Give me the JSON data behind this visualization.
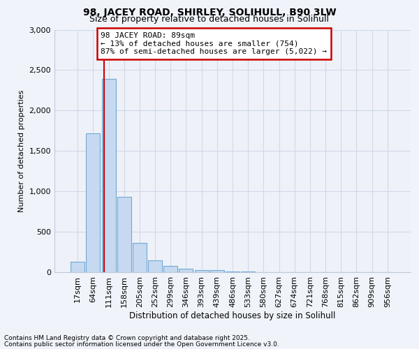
{
  "title1": "98, JACEY ROAD, SHIRLEY, SOLIHULL, B90 3LW",
  "title2": "Size of property relative to detached houses in Solihull",
  "xlabel": "Distribution of detached houses by size in Solihull",
  "ylabel": "Number of detached properties",
  "bar_labels": [
    "17sqm",
    "64sqm",
    "111sqm",
    "158sqm",
    "205sqm",
    "252sqm",
    "299sqm",
    "346sqm",
    "393sqm",
    "439sqm",
    "486sqm",
    "533sqm",
    "580sqm",
    "627sqm",
    "674sqm",
    "721sqm",
    "768sqm",
    "815sqm",
    "862sqm",
    "909sqm",
    "956sqm"
  ],
  "bar_values": [
    130,
    1720,
    2390,
    930,
    360,
    150,
    80,
    45,
    30,
    22,
    8,
    5,
    0,
    0,
    0,
    0,
    0,
    0,
    0,
    0,
    0
  ],
  "bar_color": "#c6d9f0",
  "bar_edge_color": "#6fa8d4",
  "vline_color": "#cc0000",
  "vline_x": 1.72,
  "annotation_title": "98 JACEY ROAD: 89sqm",
  "annotation_line1": "← 13% of detached houses are smaller (754)",
  "annotation_line2": "87% of semi-detached houses are larger (5,022) →",
  "annotation_box_color": "#cc0000",
  "ylim": [
    0,
    3000
  ],
  "yticks": [
    0,
    500,
    1000,
    1500,
    2000,
    2500,
    3000
  ],
  "footer1": "Contains HM Land Registry data © Crown copyright and database right 2025.",
  "footer2": "Contains public sector information licensed under the Open Government Licence v3.0.",
  "bg_color": "#f0f4fa",
  "plot_bg_color": "#eef2f8",
  "grid_color": "#d0d8e8"
}
